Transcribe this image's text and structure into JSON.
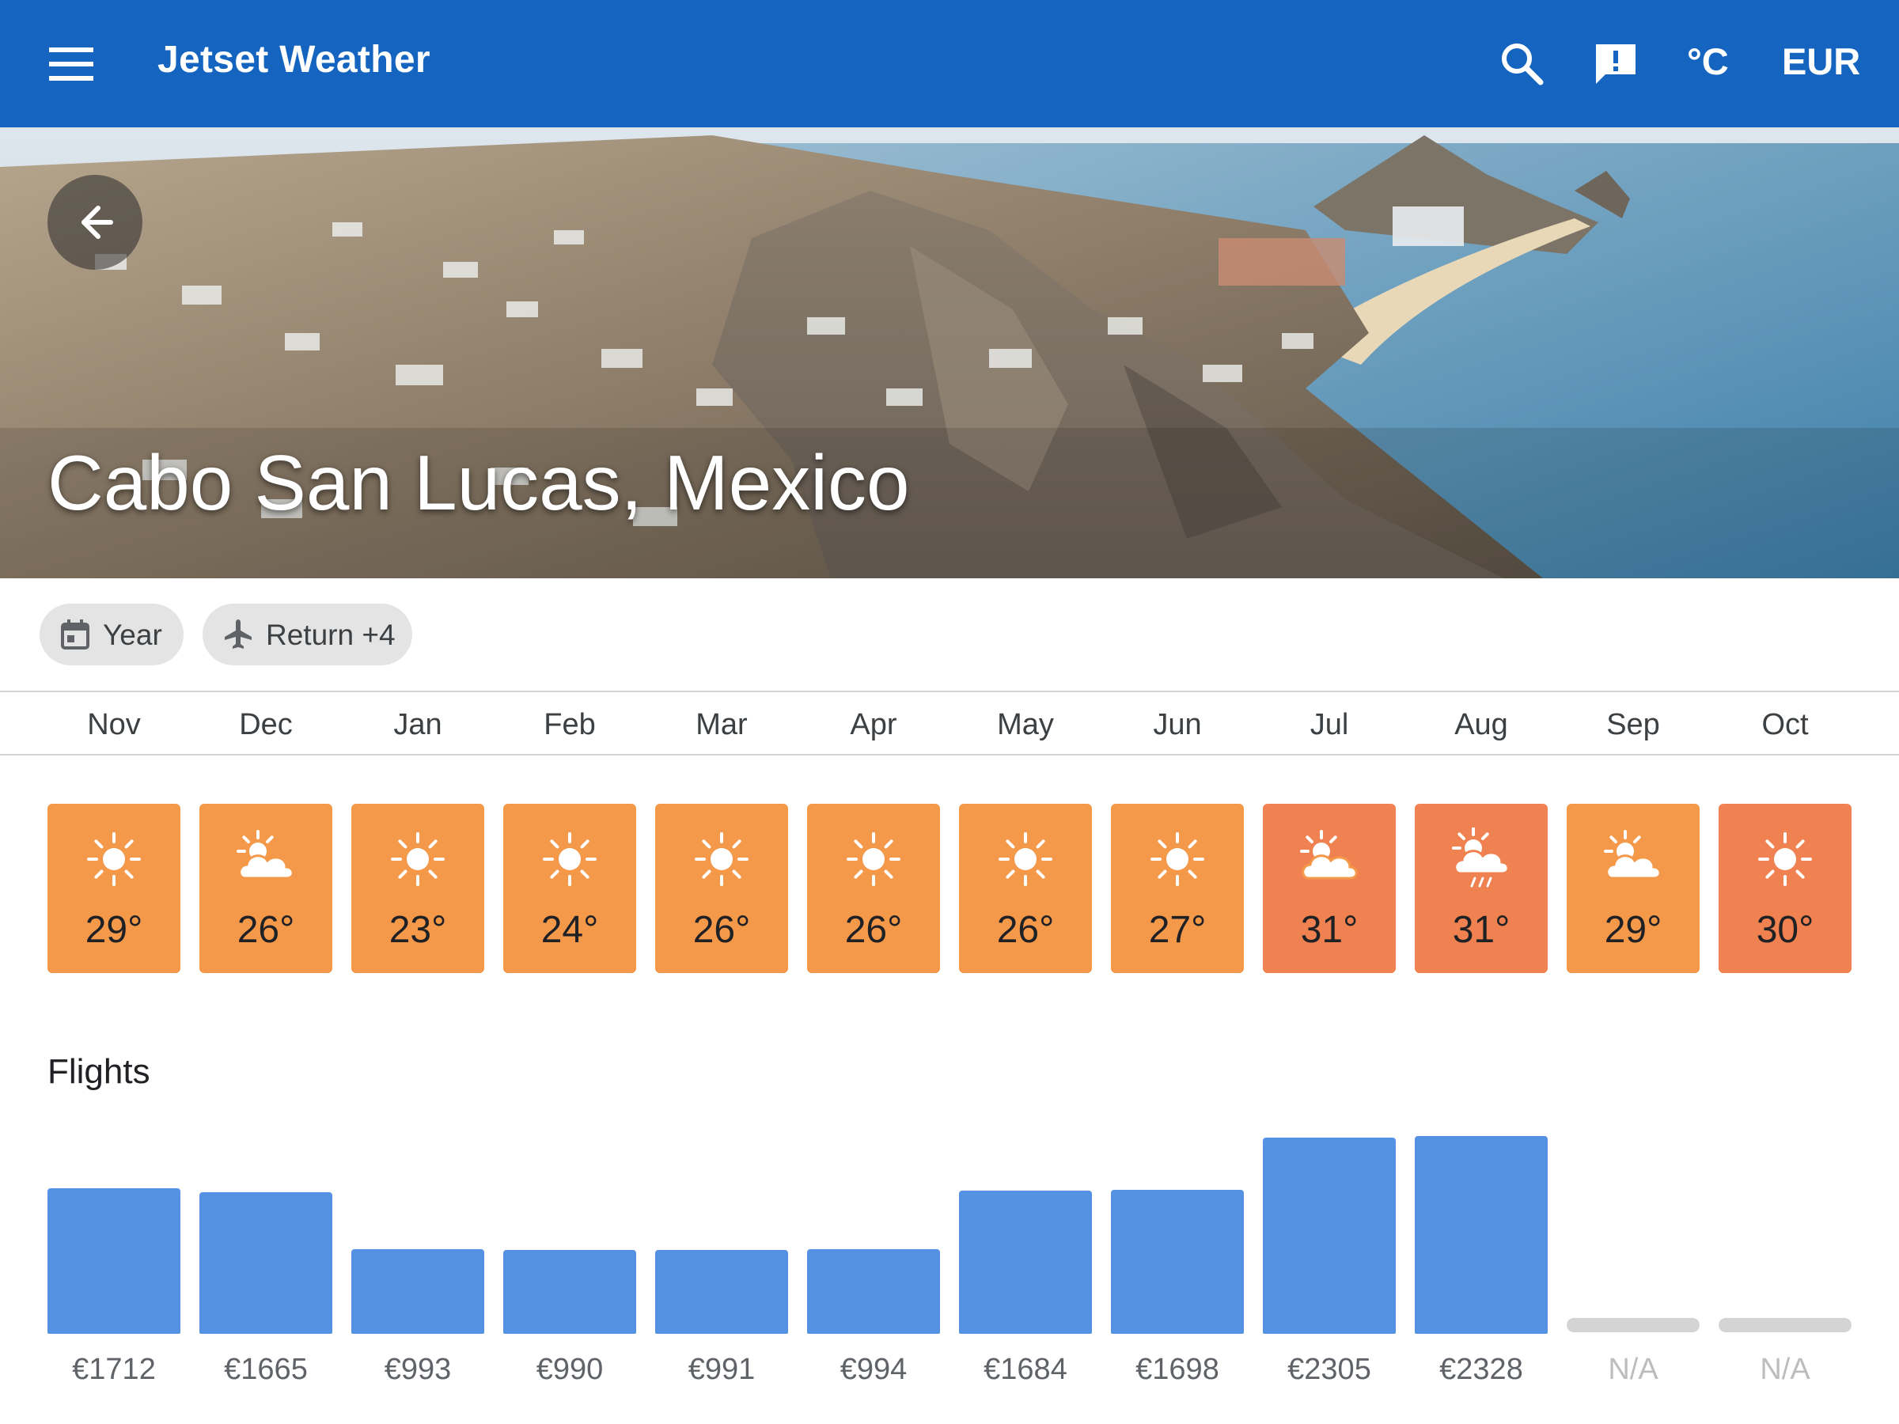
{
  "app": {
    "title": "Jetset Weather",
    "unit_label": "°C",
    "currency_label": "EUR",
    "bar_color": "#1565c0"
  },
  "hero": {
    "place": "Cabo San Lucas, Mexico"
  },
  "chips": {
    "year_label": "Year",
    "return_label": "Return +4"
  },
  "months": [
    "Nov",
    "Dec",
    "Jan",
    "Feb",
    "Mar",
    "Apr",
    "May",
    "Jun",
    "Jul",
    "Aug",
    "Sep",
    "Oct"
  ],
  "weather": [
    {
      "month": "Nov",
      "temp": "29°",
      "icon": "sun-icon",
      "color": "#f4994a"
    },
    {
      "month": "Dec",
      "temp": "26°",
      "icon": "partly-cloudy-icon",
      "color": "#f4994a"
    },
    {
      "month": "Jan",
      "temp": "23°",
      "icon": "sun-icon",
      "color": "#f4994a"
    },
    {
      "month": "Feb",
      "temp": "24°",
      "icon": "sun-icon",
      "color": "#f4994a"
    },
    {
      "month": "Mar",
      "temp": "26°",
      "icon": "sun-icon",
      "color": "#f4994a"
    },
    {
      "month": "Apr",
      "temp": "26°",
      "icon": "sun-icon",
      "color": "#f4994a"
    },
    {
      "month": "May",
      "temp": "26°",
      "icon": "sun-icon",
      "color": "#f4994a"
    },
    {
      "month": "Jun",
      "temp": "27°",
      "icon": "sun-icon",
      "color": "#f4994a"
    },
    {
      "month": "Jul",
      "temp": "31°",
      "icon": "partly-cloudy-icon",
      "color": "#f08150"
    },
    {
      "month": "Aug",
      "temp": "31°",
      "icon": "rain-cloud-icon",
      "color": "#f08150"
    },
    {
      "month": "Sep",
      "temp": "29°",
      "icon": "partly-cloudy-icon",
      "color": "#f4994a"
    },
    {
      "month": "Oct",
      "temp": "30°",
      "icon": "sun-icon",
      "color": "#f08150"
    }
  ],
  "flights": {
    "title": "Flights",
    "bar_color": "#5592e3",
    "items": [
      {
        "month": "Nov",
        "price": 1712,
        "label": "€1712"
      },
      {
        "month": "Dec",
        "price": 1665,
        "label": "€1665"
      },
      {
        "month": "Jan",
        "price": 993,
        "label": "€993"
      },
      {
        "month": "Feb",
        "price": 990,
        "label": "€990"
      },
      {
        "month": "Mar",
        "price": 991,
        "label": "€991"
      },
      {
        "month": "Apr",
        "price": 994,
        "label": "€994"
      },
      {
        "month": "May",
        "price": 1684,
        "label": "€1684"
      },
      {
        "month": "Jun",
        "price": 1698,
        "label": "€1698"
      },
      {
        "month": "Jul",
        "price": 2305,
        "label": "€2305"
      },
      {
        "month": "Aug",
        "price": 2328,
        "label": "€2328"
      },
      {
        "month": "Sep",
        "price": null,
        "label": "N/A"
      },
      {
        "month": "Oct",
        "price": null,
        "label": "N/A"
      }
    ]
  }
}
